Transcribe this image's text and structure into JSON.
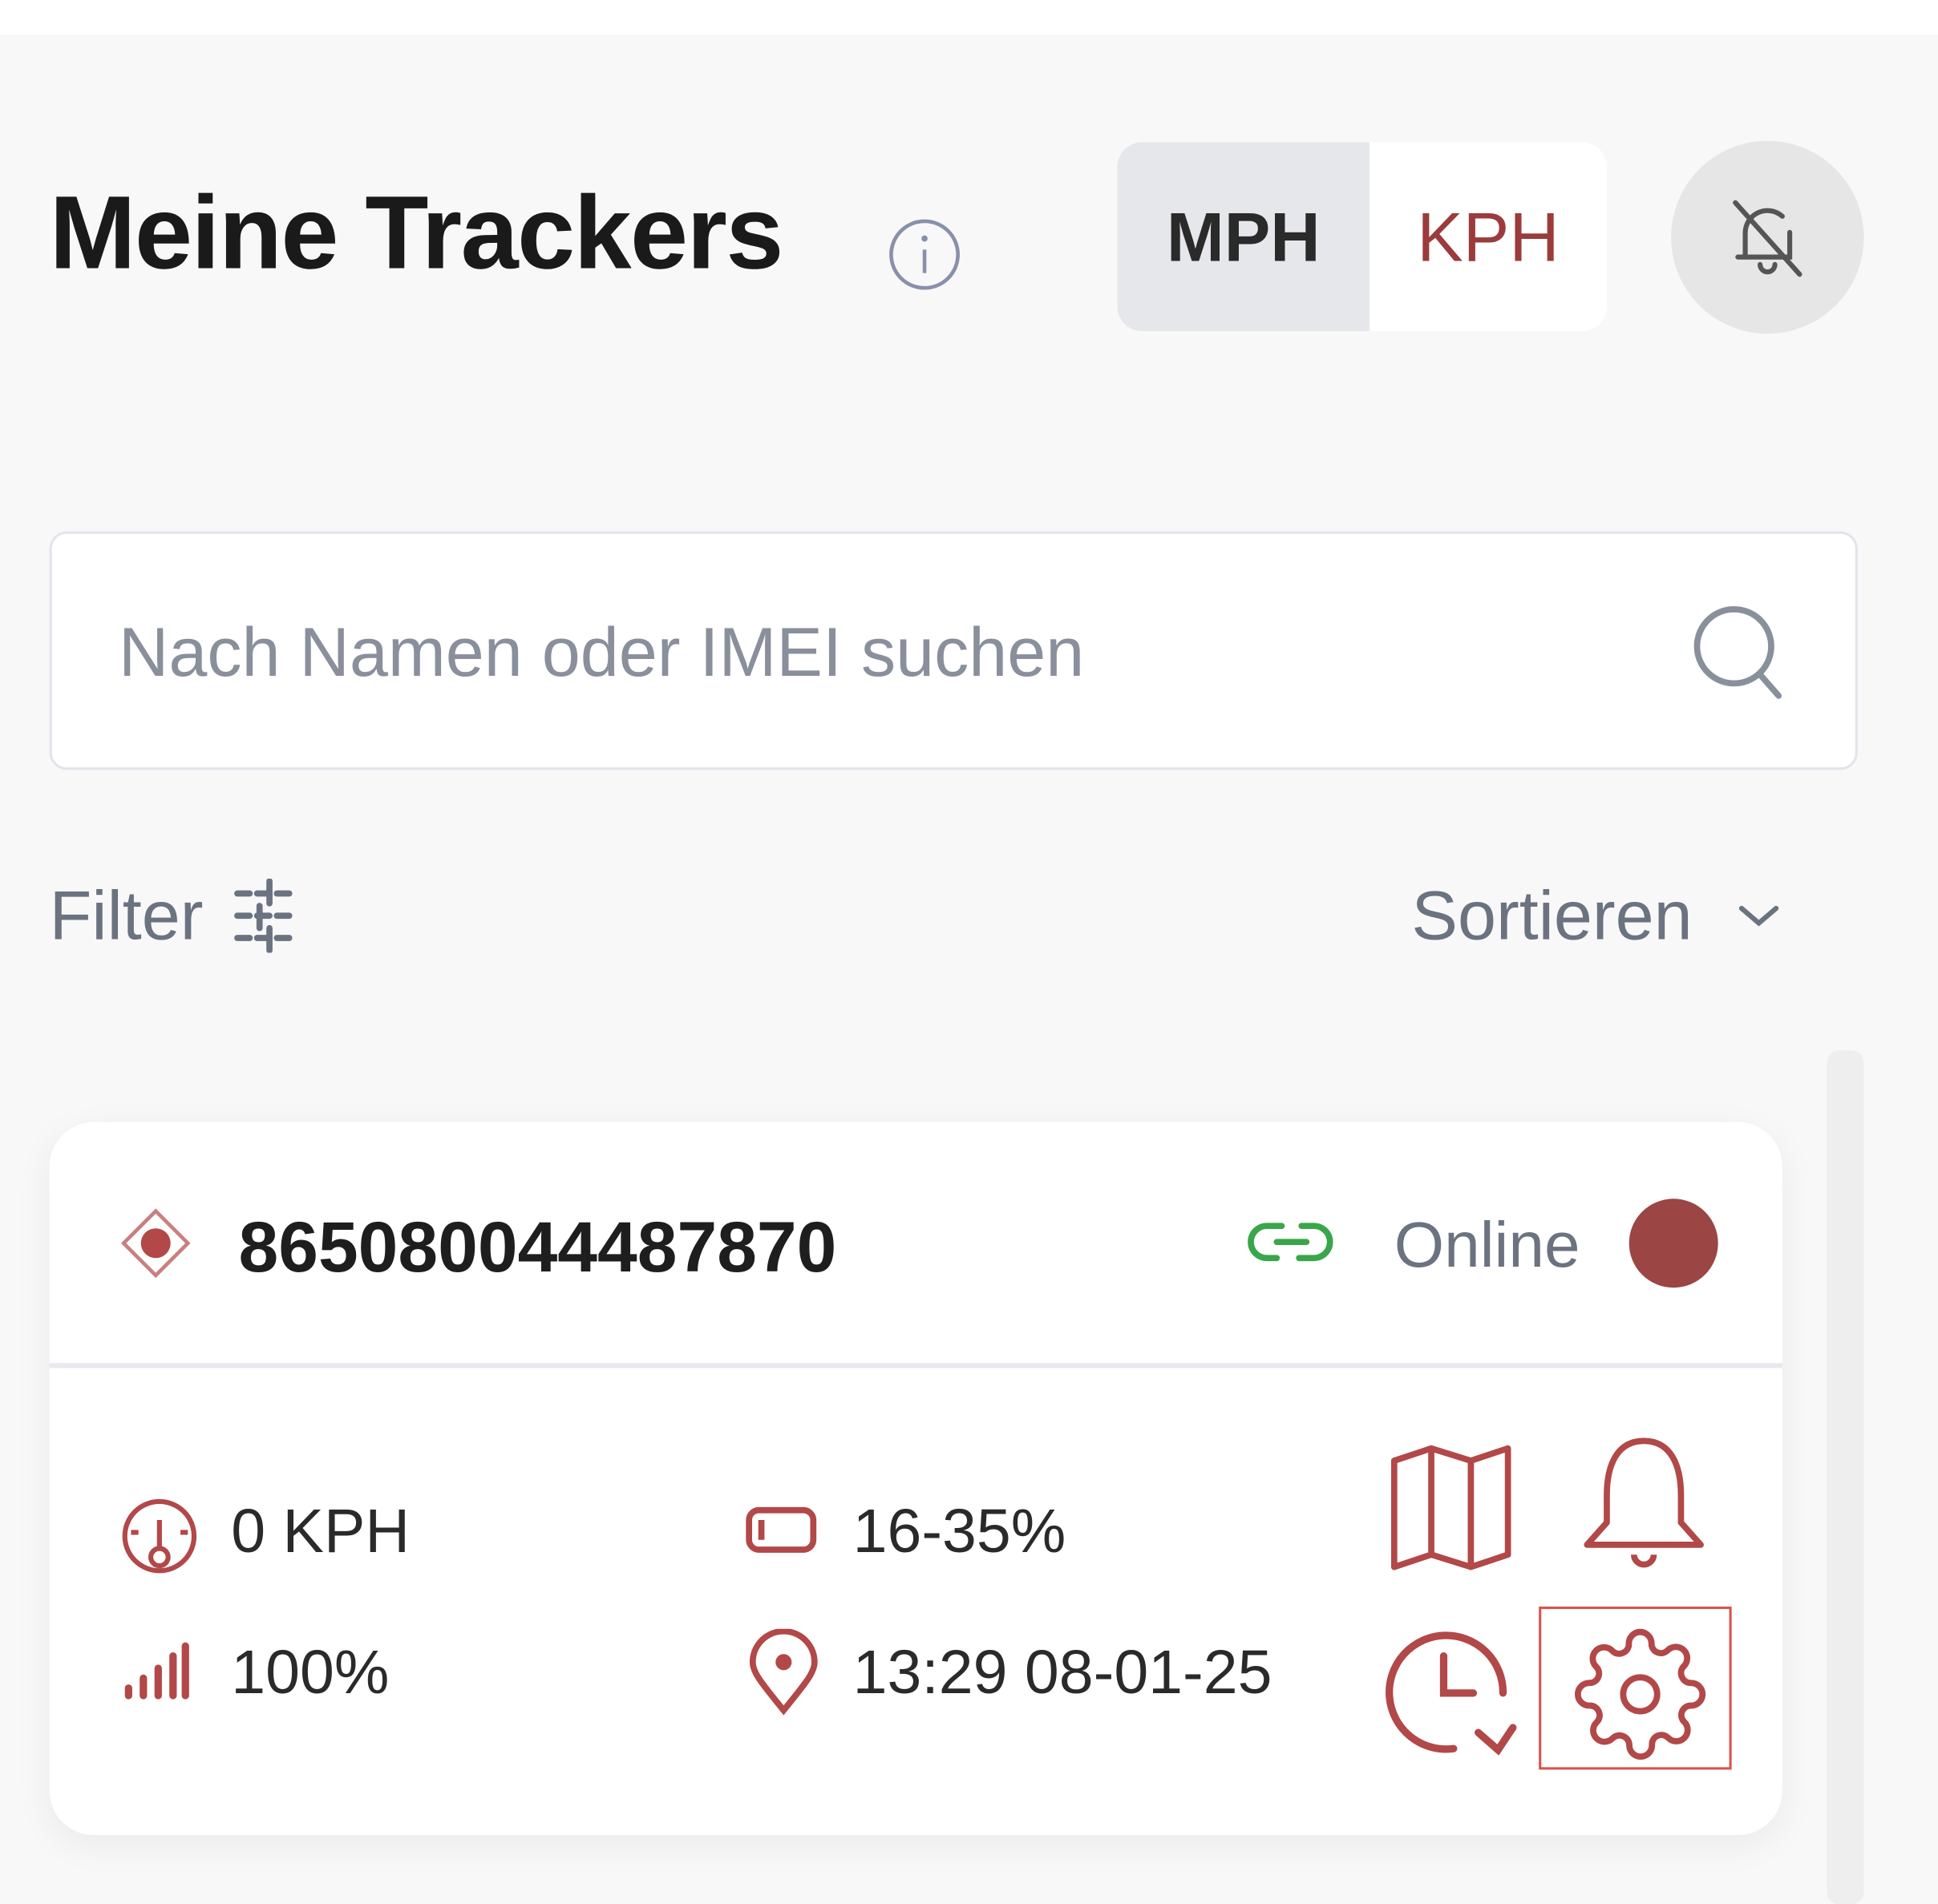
{
  "header": {
    "title": "Meine Trackers",
    "info_icon": "info-icon"
  },
  "units": {
    "options": [
      "MPH",
      "KPH"
    ],
    "selected": "MPH"
  },
  "notifications": {
    "icon": "bell-off-icon"
  },
  "search": {
    "placeholder": "Nach Namen oder IMEI suchen",
    "value": ""
  },
  "filter": {
    "label": "Filter"
  },
  "sort": {
    "label": "Sortieren"
  },
  "colors": {
    "accent": "#9b3b3b",
    "online_link": "#3aa64a",
    "status_dot": "#9b4545"
  },
  "trackers": [
    {
      "imei": "865080044487870",
      "status": "Online",
      "speed": "0 KPH",
      "battery": "16-35%",
      "signal": "100%",
      "last_update": "13:29 08-01-25",
      "actions": [
        "map-icon",
        "bell-icon",
        "history-icon",
        "settings-icon"
      ]
    }
  ]
}
